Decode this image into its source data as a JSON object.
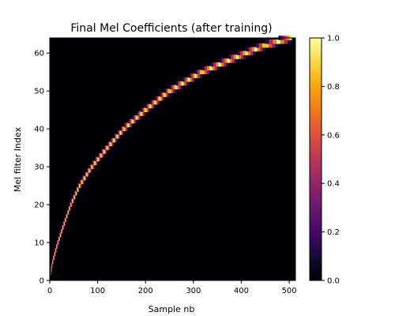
{
  "chart_data": {
    "type": "heatmap",
    "title": "Final Mel Coefficients (after training)",
    "xlabel": "Sample nb",
    "ylabel": "Mel filter Index",
    "xlim": [
      0,
      513
    ],
    "ylim": [
      0,
      64
    ],
    "x_ticks": [
      "0",
      "100",
      "200",
      "300",
      "400",
      "500"
    ],
    "y_ticks": [
      "0",
      "10",
      "20",
      "30",
      "40",
      "50",
      "60"
    ],
    "colorbar": {
      "colormap": "inferno",
      "range": [
        0.0,
        1.0
      ],
      "ticks": [
        "0.0",
        "0.2",
        "0.4",
        "0.6",
        "0.8",
        "1.0"
      ]
    },
    "background_value": 0.0,
    "peak_value": 1.0,
    "filter_count": 64,
    "filter_centers": [
      {
        "filter": 2,
        "sample": 2
      },
      {
        "filter": 5,
        "sample": 6
      },
      {
        "filter": 10,
        "sample": 17
      },
      {
        "filter": 15,
        "sample": 30
      },
      {
        "filter": 20,
        "sample": 44
      },
      {
        "filter": 25,
        "sample": 62
      },
      {
        "filter": 30,
        "sample": 88
      },
      {
        "filter": 35,
        "sample": 120
      },
      {
        "filter": 40,
        "sample": 155
      },
      {
        "filter": 45,
        "sample": 200
      },
      {
        "filter": 50,
        "sample": 250
      },
      {
        "filter": 55,
        "sample": 318
      },
      {
        "filter": 60,
        "sample": 410
      },
      {
        "filter": 62,
        "sample": 450
      },
      {
        "filter": 64,
        "sample": 505
      }
    ]
  }
}
